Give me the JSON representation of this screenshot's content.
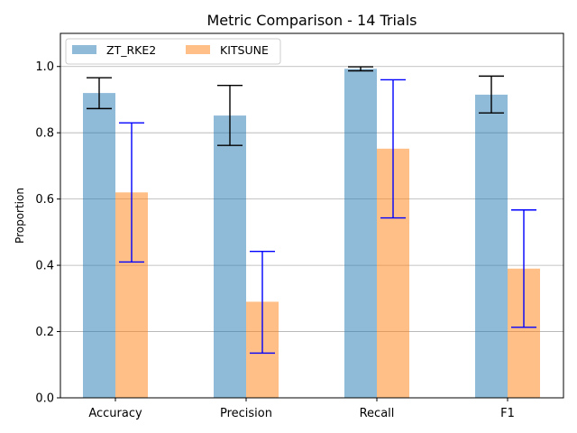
{
  "chart_data": {
    "type": "bar",
    "title": "Metric Comparison - 14 Trials",
    "xlabel": "",
    "ylabel": "Proportion",
    "categories": [
      "Accuracy",
      "Precision",
      "Recall",
      "F1"
    ],
    "ylim": [
      0,
      1.1
    ],
    "yticks": [
      0.0,
      0.2,
      0.4,
      0.6,
      0.8,
      1.0
    ],
    "ytick_labels": [
      "0.0",
      "0.2",
      "0.4",
      "0.6",
      "0.8",
      "1.0"
    ],
    "grid": "y",
    "legend": {
      "placement": "top-left",
      "columns": 2
    },
    "series": [
      {
        "name": "ZT_RKE2",
        "values": [
          0.92,
          0.852,
          0.993,
          0.915
        ],
        "err_low": [
          0.873,
          0.762,
          0.987,
          0.86
        ],
        "err_high": [
          0.966,
          0.943,
          0.999,
          0.971
        ],
        "color": "#1f77b4",
        "opacity": 0.5,
        "err_color": "#000000"
      },
      {
        "name": "KITSUNE",
        "values": [
          0.62,
          0.29,
          0.752,
          0.39
        ],
        "err_low": [
          0.41,
          0.135,
          0.543,
          0.213
        ],
        "err_high": [
          0.83,
          0.442,
          0.96,
          0.567
        ],
        "color": "#ff7f0e",
        "opacity": 0.5,
        "err_color": "#0000ff"
      }
    ]
  }
}
